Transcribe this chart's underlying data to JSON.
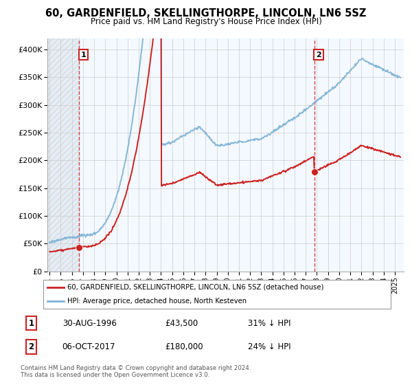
{
  "title": "60, GARDENFIELD, SKELLINGTHORPE, LINCOLN, LN6 5SZ",
  "subtitle": "Price paid vs. HM Land Registry's House Price Index (HPI)",
  "legend_line1": "60, GARDENFIELD, SKELLINGTHORPE, LINCOLN, LN6 5SZ (detached house)",
  "legend_line2": "HPI: Average price, detached house, North Kesteven",
  "table": [
    {
      "num": "1",
      "date": "30-AUG-1996",
      "price": "£43,500",
      "pct": "31% ↓ HPI"
    },
    {
      "num": "2",
      "date": "06-OCT-2017",
      "price": "£180,000",
      "pct": "24% ↓ HPI"
    }
  ],
  "footnote": "Contains HM Land Registry data © Crown copyright and database right 2024.\nThis data is licensed under the Open Government Licence v3.0.",
  "sale1_date": 1996.66,
  "sale1_price": 43500,
  "sale2_date": 2017.76,
  "sale2_price": 180000,
  "hpi_color": "#7ab0d4",
  "price_color": "#cc2222",
  "dashed_color": "#cc3333",
  "marker_color": "#cc2222",
  "hatch_color": "#c8d8e8",
  "ylim": [
    0,
    420000
  ],
  "xlim_start": 1993.8,
  "xlim_end": 2025.8,
  "xtick_start": 1994,
  "xtick_end": 2025
}
